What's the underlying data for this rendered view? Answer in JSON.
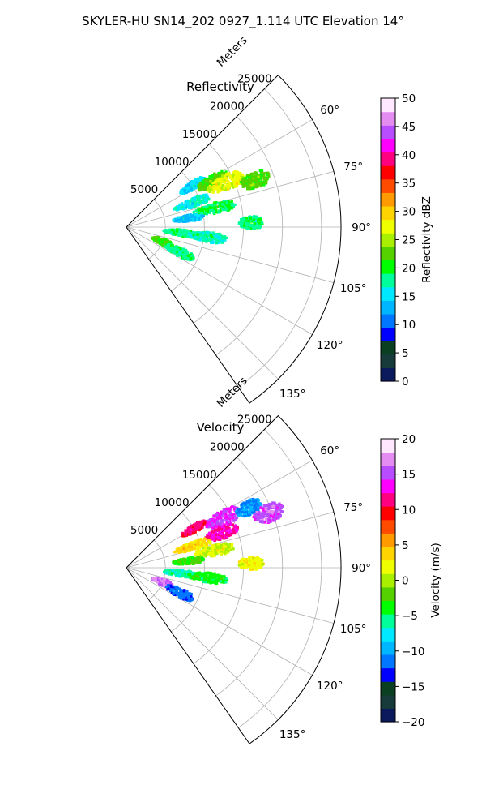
{
  "figure": {
    "suptitle": "SKYLER-HU  SN14_202  0927_1.114 UTC Elevation 14°"
  },
  "chart_data": [
    {
      "type": "heatmap",
      "projection": "polar-sector",
      "title": "Reflectivity",
      "range_label": "Meters",
      "range_ticks": [
        5000,
        10000,
        15000,
        20000,
        25000
      ],
      "range_tick_labels": [
        "5000",
        "10000",
        "15000",
        "20000",
        "25000"
      ],
      "range_max": 27500,
      "angle_range_deg": [
        45,
        145
      ],
      "angle_ticks_deg": [
        60,
        75,
        90,
        105,
        120,
        135
      ],
      "angle_tick_labels": [
        "60°",
        "75°",
        "90°",
        "105°",
        "120°",
        "135°"
      ],
      "grid": true,
      "colorbar": {
        "label": "Reflectivity dBZ",
        "min": 0,
        "max": 50,
        "ticks": [
          0,
          5,
          10,
          15,
          20,
          25,
          30,
          35,
          40,
          45,
          50
        ],
        "tick_labels": [
          "0",
          "5",
          "10",
          "15",
          "20",
          "25",
          "30",
          "35",
          "40",
          "45",
          "50"
        ],
        "colormap": [
          "#0b1a5c",
          "#173b3a",
          "#0a3f22",
          "#0000ff",
          "#0077ff",
          "#00b7ff",
          "#00e8ff",
          "#00ff9a",
          "#00ff00",
          "#55d100",
          "#a8ef00",
          "#f0ff00",
          "#ffd400",
          "#ff9a00",
          "#ff4b00",
          "#ff0000",
          "#ff0080",
          "#ff00ff",
          "#b84dff",
          "#e58cf2",
          "#ffe8ff"
        ]
      },
      "blobs": [
        {
          "range": 10000,
          "angle": 58,
          "r_w": 1800,
          "a_w": 3.0,
          "value": 15
        },
        {
          "range": 12500,
          "angle": 62,
          "r_w": 2200,
          "a_w": 3.5,
          "value": 22
        },
        {
          "range": 14000,
          "angle": 66,
          "r_w": 2600,
          "a_w": 4.0,
          "value": 27
        },
        {
          "range": 17500,
          "angle": 70,
          "r_w": 2000,
          "a_w": 3.5,
          "value": 22
        },
        {
          "range": 9000,
          "angle": 70,
          "r_w": 2500,
          "a_w": 3.5,
          "value": 16
        },
        {
          "range": 11500,
          "angle": 78,
          "r_w": 2800,
          "a_w": 3.5,
          "value": 19
        },
        {
          "range": 8000,
          "angle": 82,
          "r_w": 2000,
          "a_w": 3.0,
          "value": 14
        },
        {
          "range": 16000,
          "angle": 88,
          "r_w": 1600,
          "a_w": 3.0,
          "value": 18
        },
        {
          "range": 7000,
          "angle": 96,
          "r_w": 2200,
          "a_w": 3.5,
          "value": 18
        },
        {
          "range": 10500,
          "angle": 97,
          "r_w": 2600,
          "a_w": 3.5,
          "value": 17
        },
        {
          "range": 5000,
          "angle": 112,
          "r_w": 1400,
          "a_w": 5.0,
          "value": 21
        },
        {
          "range": 7500,
          "angle": 115,
          "r_w": 2000,
          "a_w": 4.5,
          "value": 18
        }
      ]
    },
    {
      "type": "heatmap",
      "projection": "polar-sector",
      "title": "Velocity",
      "range_label": "Meters",
      "range_ticks": [
        5000,
        10000,
        15000,
        20000,
        25000
      ],
      "range_tick_labels": [
        "5000",
        "10000",
        "15000",
        "20000",
        "25000"
      ],
      "range_max": 27500,
      "angle_range_deg": [
        45,
        145
      ],
      "angle_ticks_deg": [
        60,
        75,
        90,
        105,
        120,
        135
      ],
      "angle_tick_labels": [
        "60°",
        "75°",
        "90°",
        "105°",
        "120°",
        "135°"
      ],
      "grid": true,
      "colorbar": {
        "label": "Velocity (m/s)",
        "min": -20,
        "max": 20,
        "ticks": [
          -20,
          -15,
          -10,
          -5,
          0,
          5,
          10,
          15,
          20
        ],
        "tick_labels": [
          "−20",
          "−15",
          "−10",
          "−5",
          "0",
          "5",
          "10",
          "15",
          "20"
        ],
        "colormap": [
          "#0b1a5c",
          "#173b3a",
          "#0a3f22",
          "#0000ff",
          "#0077ff",
          "#00b7ff",
          "#00e8ff",
          "#00ff9a",
          "#00ff00",
          "#55d100",
          "#a8ef00",
          "#f0ff00",
          "#ffd400",
          "#ff9a00",
          "#ff4b00",
          "#ff0000",
          "#ff0080",
          "#ff00ff",
          "#b84dff",
          "#e58cf2",
          "#ffe8ff"
        ]
      },
      "blobs": [
        {
          "range": 10000,
          "angle": 60,
          "r_w": 1800,
          "a_w": 3.0,
          "value": 11
        },
        {
          "range": 14000,
          "angle": 63,
          "r_w": 2500,
          "a_w": 4.0,
          "value": 14
        },
        {
          "range": 17500,
          "angle": 64,
          "r_w": 1800,
          "a_w": 3.0,
          "value": -11
        },
        {
          "range": 19500,
          "angle": 69,
          "r_w": 2000,
          "a_w": 3.5,
          "value": 15
        },
        {
          "range": 13000,
          "angle": 70,
          "r_w": 2200,
          "a_w": 3.5,
          "value": 12
        },
        {
          "range": 9000,
          "angle": 72,
          "r_w": 2500,
          "a_w": 3.5,
          "value": 3
        },
        {
          "range": 11500,
          "angle": 79,
          "r_w": 2600,
          "a_w": 3.5,
          "value": 1
        },
        {
          "range": 8000,
          "angle": 84,
          "r_w": 2000,
          "a_w": 3.0,
          "value": -3
        },
        {
          "range": 16000,
          "angle": 88,
          "r_w": 1600,
          "a_w": 3.0,
          "value": 2
        },
        {
          "range": 7000,
          "angle": 96,
          "r_w": 2200,
          "a_w": 3.5,
          "value": -6
        },
        {
          "range": 10500,
          "angle": 97,
          "r_w": 2600,
          "a_w": 3.5,
          "value": -4
        },
        {
          "range": 5000,
          "angle": 112,
          "r_w": 1400,
          "a_w": 5.0,
          "value": 16
        },
        {
          "range": 7500,
          "angle": 115,
          "r_w": 2000,
          "a_w": 4.5,
          "value": -12
        }
      ]
    }
  ]
}
